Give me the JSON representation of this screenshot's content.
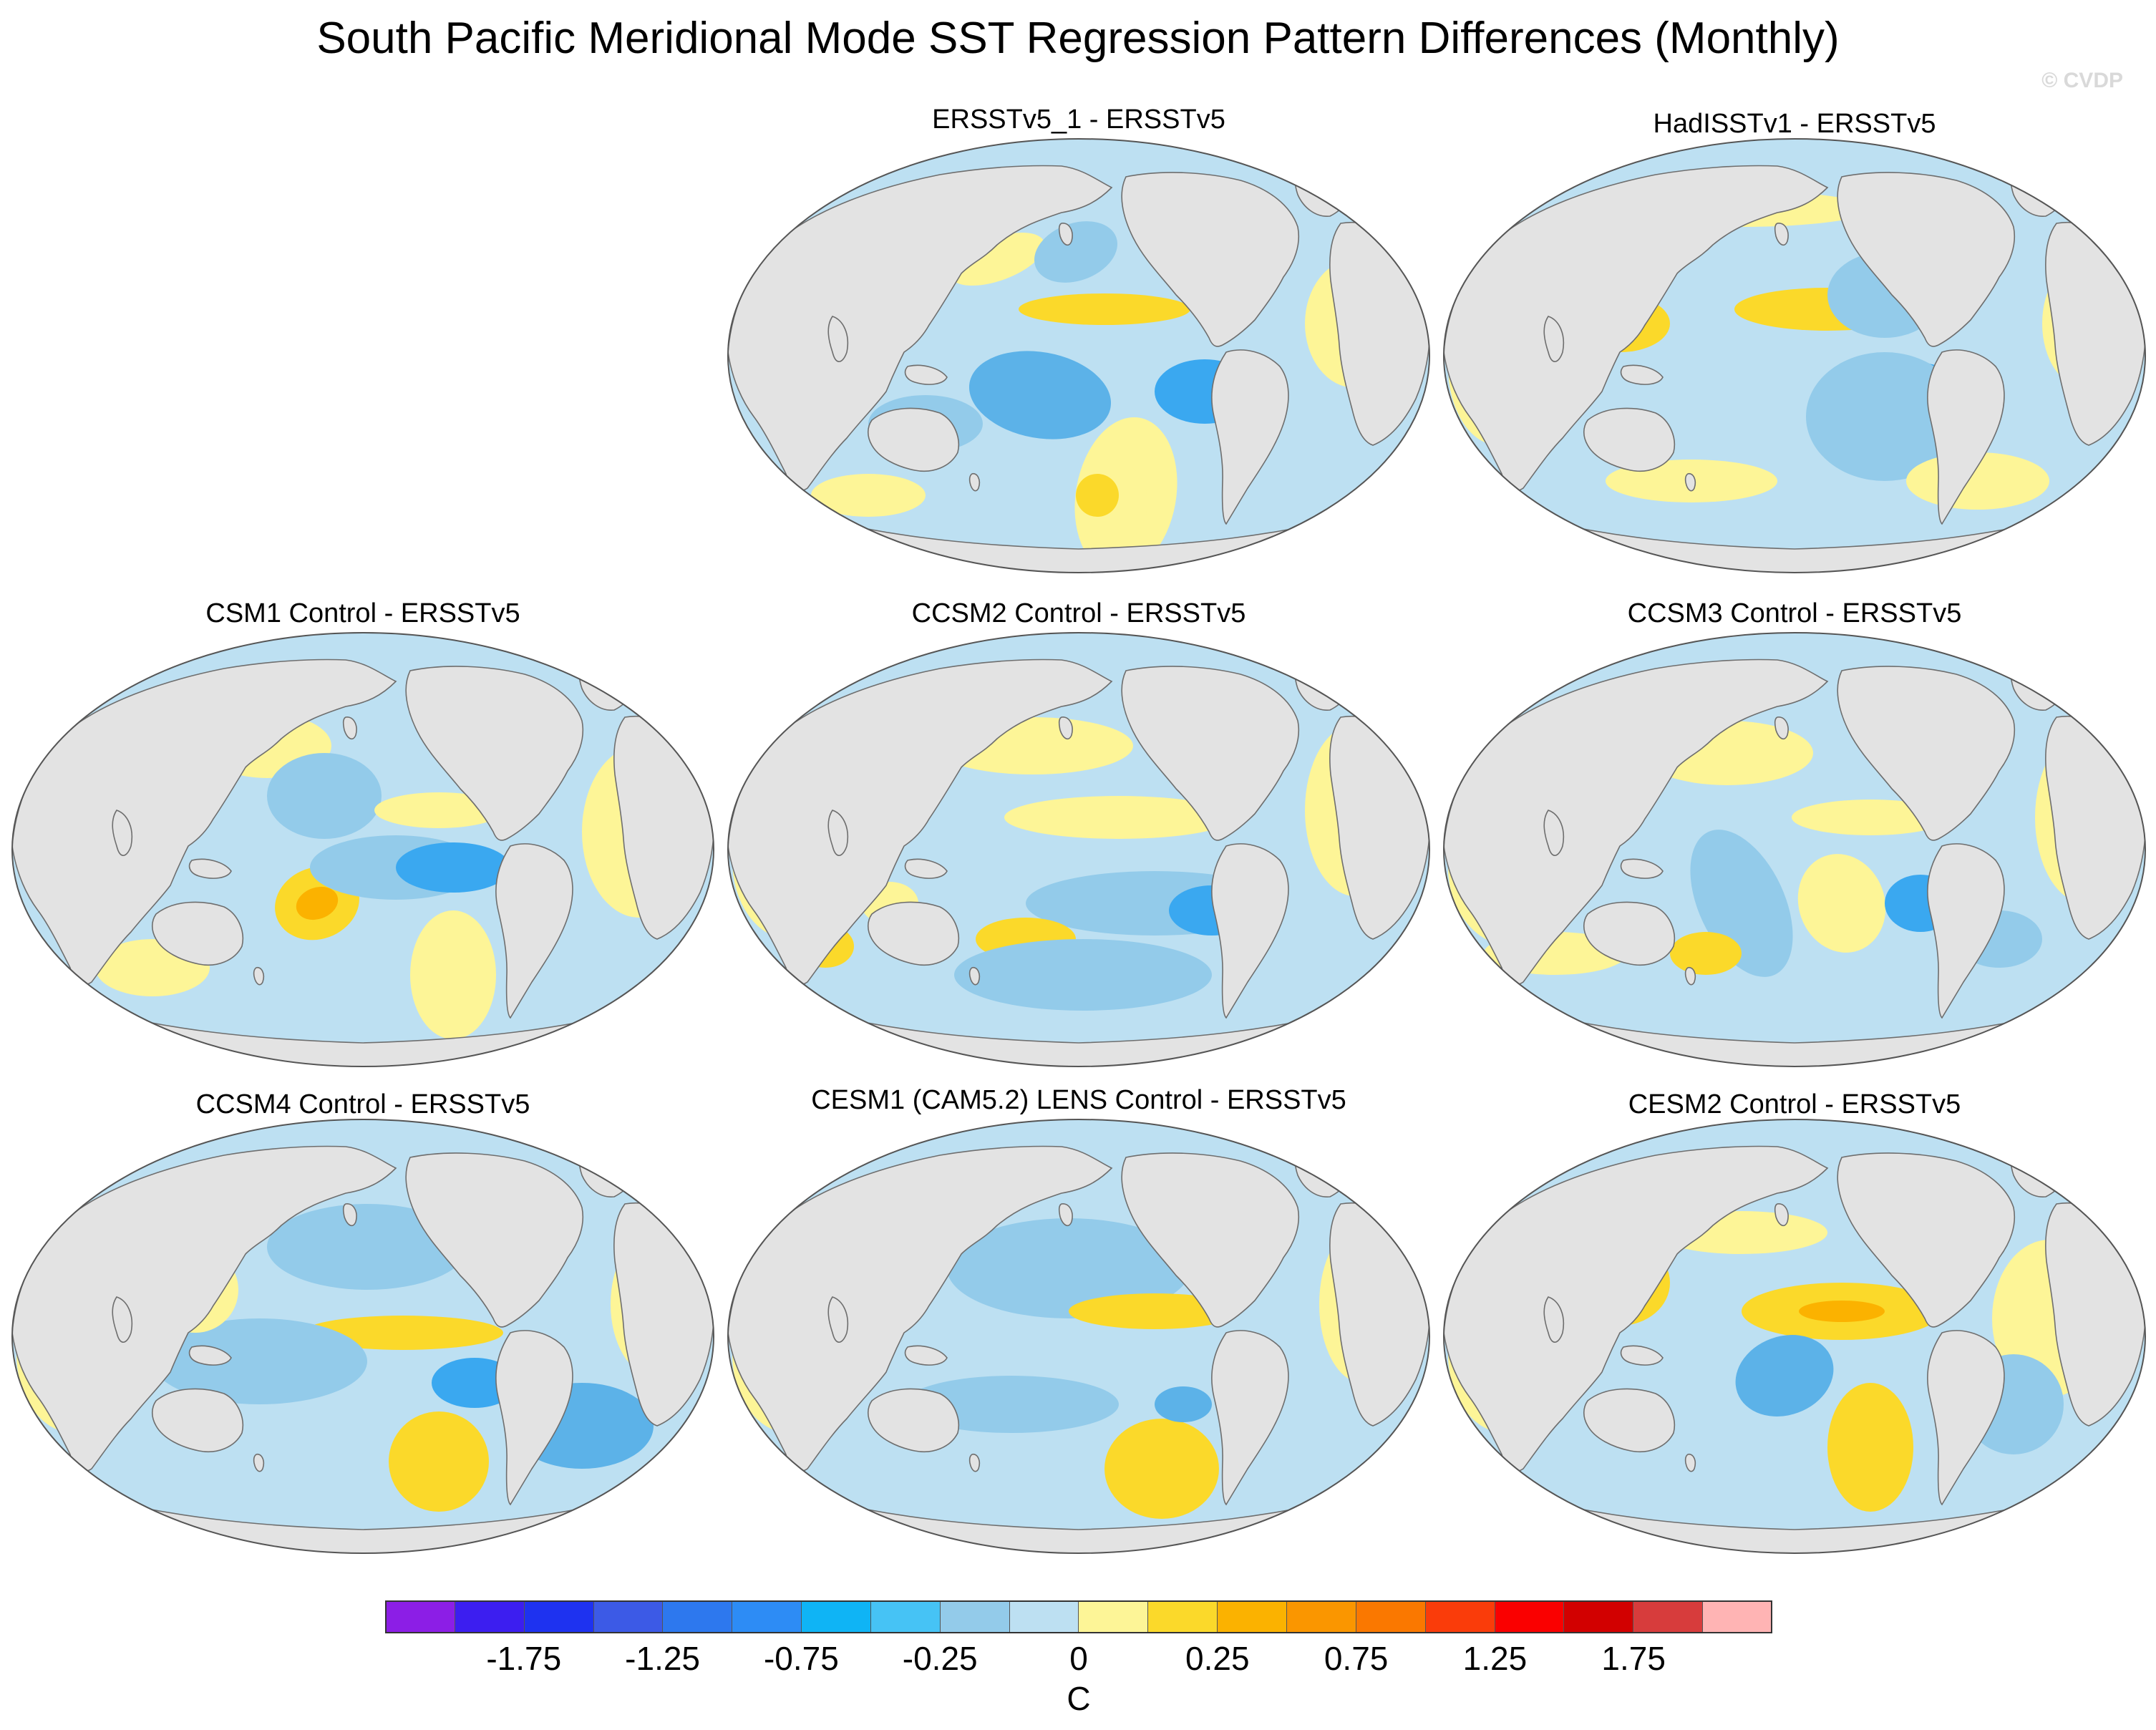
{
  "title": "South Pacific Meridional Mode SST Regression Pattern Differences (Monthly)",
  "watermark": "© CVDP",
  "colors": {
    "ocean_default": "#bde0f2",
    "land": "#e3e3e3",
    "coast": "#6e6e6e"
  },
  "panels": [
    {
      "id": "p1",
      "title": "ERSSTv5_1 - ERSSTv5",
      "features": [
        {
          "c": "#fdf597"
        },
        {
          "c": "#fdf597"
        },
        {
          "c": "#fdf597"
        },
        {
          "c": "#fdf597"
        },
        {
          "c": "#fbd92a"
        },
        {
          "c": "#93cbea"
        },
        {
          "c": "#5cb2e8"
        },
        {
          "c": "#3aa8f0"
        },
        {
          "c": "#93cbea"
        },
        {
          "c": "#fdf597"
        },
        {
          "c": "#fbd92a"
        },
        {
          "c": "#fdf597"
        }
      ]
    },
    {
      "id": "p2",
      "title": "HadISSTv1 - ERSSTv5",
      "features": [
        {
          "c": "#fdf597"
        },
        {
          "c": "#fdf597"
        },
        {
          "c": "#fdf597"
        },
        {
          "c": "#fbd92a"
        },
        {
          "c": "#fbd92a"
        },
        {
          "c": "#93cbea"
        },
        {
          "c": "#3aa8f0"
        },
        {
          "c": "#93cbea"
        },
        {
          "c": "#fdf597"
        },
        {
          "c": "#fdf597"
        },
        {
          "c": "#fdf597"
        }
      ]
    },
    {
      "id": "p3",
      "title": "CSM1 Control - ERSSTv5",
      "features": [
        {
          "c": "#fdf597"
        },
        {
          "c": "#fdf597"
        },
        {
          "c": "#fdf597"
        },
        {
          "c": "#fdf597"
        },
        {
          "c": "#fbd92a"
        },
        {
          "c": "#fbb200"
        },
        {
          "c": "#93cbea"
        },
        {
          "c": "#3aa8f0"
        },
        {
          "c": "#93cbea"
        },
        {
          "c": "#fdf597"
        },
        {
          "c": "#fdf597"
        }
      ]
    },
    {
      "id": "p4",
      "title": "CCSM2 Control - ERSSTv5",
      "features": [
        {
          "c": "#fdf597"
        },
        {
          "c": "#fdf597"
        },
        {
          "c": "#fdf597"
        },
        {
          "c": "#fbd92a"
        },
        {
          "c": "#fdf597"
        },
        {
          "c": "#93cbea"
        },
        {
          "c": "#3aa8f0"
        },
        {
          "c": "#fbd92a"
        },
        {
          "c": "#93cbea"
        },
        {
          "c": "#fdf597"
        }
      ]
    },
    {
      "id": "p5",
      "title": "CCSM3 Control - ERSSTv5",
      "features": [
        {
          "c": "#fdf597"
        },
        {
          "c": "#fdf597"
        },
        {
          "c": "#fdf597"
        },
        {
          "c": "#93cbea"
        },
        {
          "c": "#fdf597"
        },
        {
          "c": "#3aa8f0"
        },
        {
          "c": "#fbd92a"
        },
        {
          "c": "#fdf597"
        },
        {
          "c": "#fdf597"
        },
        {
          "c": "#93cbea"
        }
      ]
    },
    {
      "id": "p6",
      "title": "CCSM4 Control - ERSSTv5",
      "features": [
        {
          "c": "#fdf597"
        },
        {
          "c": "#fbd92a"
        },
        {
          "c": "#fdf597"
        },
        {
          "c": "#93cbea"
        },
        {
          "c": "#3aa8f0"
        },
        {
          "c": "#fbd92a"
        },
        {
          "c": "#fbd92a"
        },
        {
          "c": "#93cbea"
        },
        {
          "c": "#fdf597"
        },
        {
          "c": "#5cb2e8"
        }
      ]
    },
    {
      "id": "p7",
      "title": "CESM1 (CAM5.2) LENS Control - ERSSTv5",
      "features": [
        {
          "c": "#fdf597"
        },
        {
          "c": "#fbd92a"
        },
        {
          "c": "#fdf597"
        },
        {
          "c": "#93cbea"
        },
        {
          "c": "#fbd92a"
        },
        {
          "c": "#fbd92a"
        },
        {
          "c": "#93cbea"
        },
        {
          "c": "#fdf597"
        },
        {
          "c": "#5cb2e8"
        },
        {
          "c": "#fdf597"
        }
      ]
    },
    {
      "id": "p8",
      "title": "CESM2 Control - ERSSTv5",
      "features": [
        {
          "c": "#fdf597"
        },
        {
          "c": "#fbd92a"
        },
        {
          "c": "#fbd92a"
        },
        {
          "c": "#fbb200"
        },
        {
          "c": "#5cb2e8"
        },
        {
          "c": "#fbd92a"
        },
        {
          "c": "#fdf597"
        },
        {
          "c": "#93cbea"
        },
        {
          "c": "#fbd92a"
        },
        {
          "c": "#fdf597"
        }
      ]
    }
  ],
  "colorbar": {
    "colors": [
      "#8c1ee6",
      "#3c1ef0",
      "#1e32f0",
      "#3c5ae6",
      "#2d78ee",
      "#2d8cf5",
      "#0fb4f5",
      "#46c3f5",
      "#93cbea",
      "#bde0f2",
      "#fdf597",
      "#fbd92a",
      "#fbb200",
      "#fa9600",
      "#fa7800",
      "#fa3c0a",
      "#fa0000",
      "#d20000",
      "#d73c3c",
      "#ffb4b4"
    ],
    "tick_labels": [
      "-1.75",
      "-1.25",
      "-0.75",
      "-0.25",
      "0",
      "0.25",
      "0.75",
      "1.25",
      "1.75"
    ],
    "unit": "C"
  }
}
